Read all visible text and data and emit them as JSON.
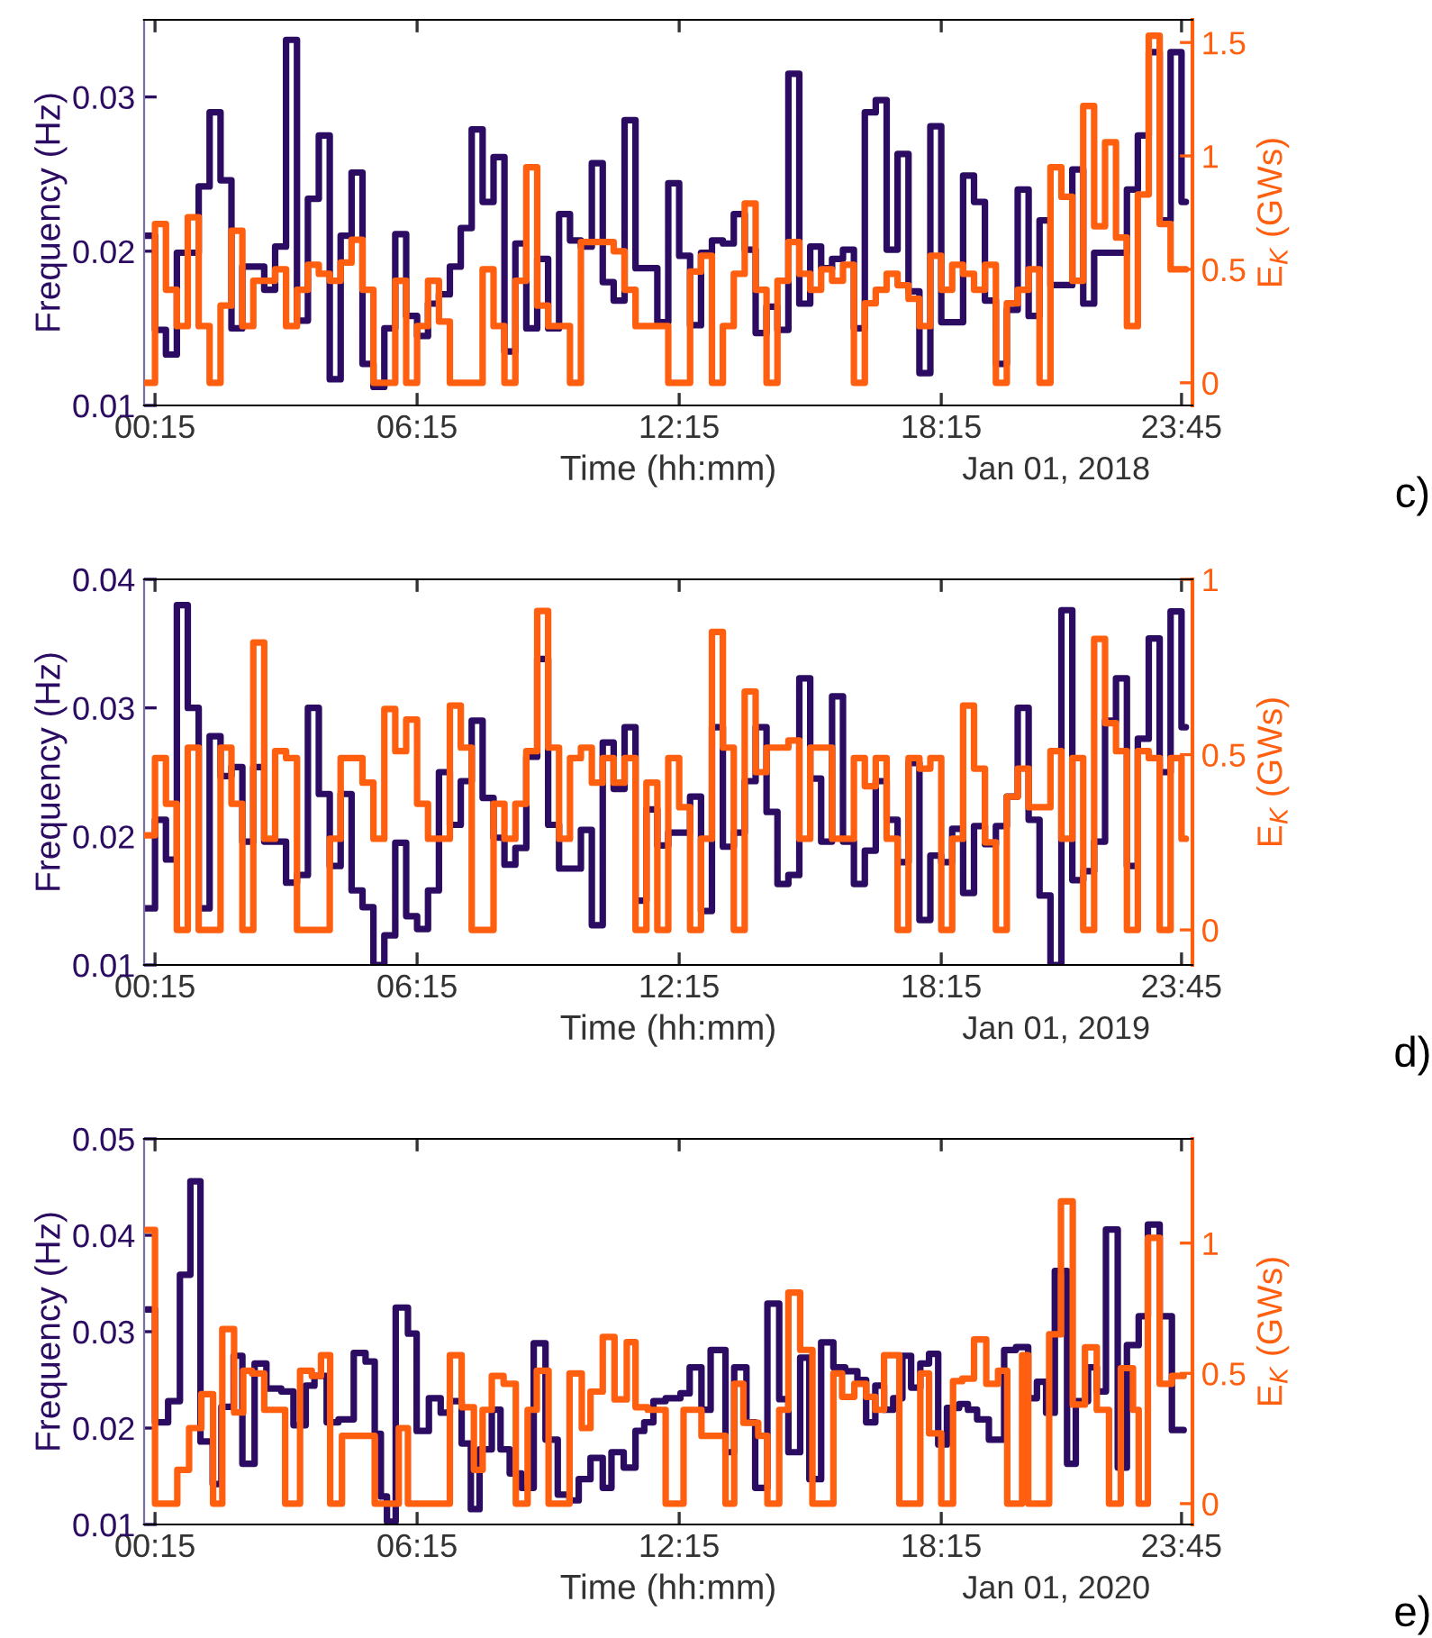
{
  "chart_data": [
    {
      "type": "step",
      "xlabel": "Time (hh:mm)",
      "ylabel": "Frequency (Hz)",
      "y2label": "E$_{K}$ (GWs)",
      "annotations": [
        "Jan 01, 2018",
        "c)"
      ],
      "xlim": [
        0,
        24
      ],
      "xticks": [
        {
          "value": 0.25,
          "label": "00:15"
        },
        {
          "value": 6.25,
          "label": "06:15"
        },
        {
          "value": 12.25,
          "label": "12:15"
        },
        {
          "value": 18.25,
          "label": "18:15"
        },
        {
          "value": 23.75,
          "label": "23:45"
        }
      ],
      "ylim": [
        0.01,
        0.035
      ],
      "yticks": [
        0.01,
        0.02,
        0.03
      ],
      "y2lim": [
        -0.1,
        1.6
      ],
      "y2ticks": [
        0,
        0.5,
        1,
        1.5
      ],
      "series": [
        {
          "color": "#2b0c62",
          "x": [
            0,
            0.25,
            0.5,
            0.75,
            1.25,
            1.5,
            1.75,
            2.0,
            2.25,
            2.75,
            3.0,
            3.25,
            3.5,
            3.75,
            4.0,
            4.25,
            4.5,
            4.75,
            5.0,
            5.25,
            5.5,
            5.75,
            6.0,
            6.25,
            6.5,
            6.75,
            7.0,
            7.25,
            7.5,
            7.75,
            8.0,
            8.25,
            8.5,
            8.75,
            9.0,
            9.25,
            9.5,
            9.75,
            10.0,
            10.25,
            10.5,
            10.75,
            11.0,
            11.25,
            11.75,
            12.0,
            12.25,
            12.5,
            12.75,
            13.0,
            13.25,
            13.5,
            13.75,
            14.0,
            14.25,
            14.5,
            14.75,
            15.0,
            15.25,
            15.5,
            15.75,
            16.0,
            16.25,
            16.5,
            16.75,
            17.0,
            17.25,
            17.5,
            17.75,
            18.0,
            18.25,
            18.75,
            19.0,
            19.25,
            19.5,
            19.75,
            20.0,
            20.25,
            20.5,
            20.75,
            21.25,
            21.5,
            21.75,
            22.5,
            22.75,
            23.0,
            23.25,
            23.5,
            23.75,
            23.85
          ],
          "values": [
            0.021,
            0.0149,
            0.0133,
            0.0199,
            0.0242,
            0.029,
            0.0246,
            0.015,
            0.019,
            0.0175,
            0.0203,
            0.0337,
            0.0155,
            0.0234,
            0.0275,
            0.0117,
            0.021,
            0.0251,
            0.0127,
            0.0112,
            0.015,
            0.0211,
            0.0158,
            0.0145,
            0.0166,
            0.0172,
            0.019,
            0.0215,
            0.0279,
            0.0232,
            0.0261,
            0.0135,
            0.0205,
            0.015,
            0.0195,
            0.015,
            0.0224,
            0.0207,
            0.0203,
            0.0257,
            0.018,
            0.0168,
            0.0285,
            0.0189,
            0.0154,
            0.0244,
            0.0197,
            0.0152,
            0.0199,
            0.0207,
            0.0205,
            0.0224,
            0.0201,
            0.0147,
            0.0164,
            0.0149,
            0.0315,
            0.0166,
            0.0203,
            0.0189,
            0.0195,
            0.0201,
            0.015,
            0.029,
            0.0298,
            0.0201,
            0.0263,
            0.0174,
            0.0121,
            0.0281,
            0.0154,
            0.0249,
            0.0232,
            0.0168,
            0.0127,
            0.0162,
            0.024,
            0.0158,
            0.022,
            0.0178,
            0.0253,
            0.0166,
            0.0199,
            0.024,
            0.0275,
            0.0329,
            0.022,
            0.0329,
            0.0232,
            0.0232
          ]
        },
        {
          "color": "#ff5f0f",
          "axis": "y2",
          "x": [
            0,
            0.25,
            0.5,
            0.75,
            1.0,
            1.25,
            1.5,
            1.75,
            2.0,
            2.25,
            2.5,
            3.0,
            3.25,
            3.5,
            3.75,
            4.0,
            4.25,
            4.5,
            4.75,
            5.0,
            5.25,
            5.75,
            6.0,
            6.25,
            6.5,
            6.75,
            7.0,
            7.75,
            8.0,
            8.25,
            8.5,
            8.75,
            9.0,
            9.25,
            9.75,
            10.0,
            10.75,
            11.0,
            11.25,
            12.0,
            12.5,
            12.75,
            13.0,
            13.25,
            13.5,
            13.75,
            14.0,
            14.25,
            14.5,
            14.75,
            15.0,
            15.25,
            15.5,
            15.75,
            16.0,
            16.25,
            16.5,
            16.75,
            17.0,
            17.25,
            17.5,
            17.75,
            18.0,
            18.25,
            18.5,
            18.75,
            19.0,
            19.25,
            19.5,
            19.75,
            20.0,
            20.25,
            20.5,
            20.75,
            21.0,
            21.25,
            21.5,
            21.75,
            22.0,
            22.25,
            22.5,
            22.75,
            23.0,
            23.25,
            23.5,
            23.85
          ],
          "values": [
            0,
            0.7,
            0.41,
            0.25,
            0.73,
            0.25,
            0,
            0.34,
            0.67,
            0.25,
            0.45,
            0.5,
            0.25,
            0.41,
            0.52,
            0.48,
            0.45,
            0.53,
            0.63,
            0.41,
            0,
            0.45,
            0,
            0.25,
            0.45,
            0.27,
            0,
            0.5,
            0.25,
            0,
            0.45,
            0.95,
            0.34,
            0.25,
            0,
            0.62,
            0.58,
            0.41,
            0.25,
            0,
            0.49,
            0.56,
            0,
            0.25,
            0.48,
            0.79,
            0.41,
            0,
            0.45,
            0.62,
            0.48,
            0.41,
            0.5,
            0.45,
            0.52,
            0,
            0.35,
            0.41,
            0.48,
            0.43,
            0.37,
            0.25,
            0.56,
            0.41,
            0.52,
            0.48,
            0.41,
            0.52,
            0,
            0.35,
            0.41,
            0.5,
            0,
            0.95,
            0.82,
            0.45,
            1.22,
            0.69,
            1.06,
            0.64,
            0.25,
            0.83,
            1.53,
            0.7,
            0.5,
            0.5
          ]
        }
      ]
    },
    {
      "type": "step",
      "xlabel": "Time (hh:mm)",
      "ylabel": "Frequency (Hz)",
      "y2label": "E$_{K}$ (GWs)",
      "annotations": [
        "Jan 01, 2019",
        "d)"
      ],
      "xlim": [
        0,
        24
      ],
      "xticks": [
        {
          "value": 0.25,
          "label": "00:15"
        },
        {
          "value": 6.25,
          "label": "06:15"
        },
        {
          "value": 12.25,
          "label": "12:15"
        },
        {
          "value": 18.25,
          "label": "18:15"
        },
        {
          "value": 23.75,
          "label": "23:45"
        }
      ],
      "ylim": [
        0.01,
        0.04
      ],
      "yticks": [
        0.01,
        0.02,
        0.03,
        0.04
      ],
      "y2lim": [
        -0.1,
        1
      ],
      "y2ticks": [
        0,
        0.5,
        1
      ],
      "series": [
        {
          "color": "#2b0c62",
          "x": [
            0,
            0.25,
            0.5,
            0.75,
            1.0,
            1.25,
            1.5,
            1.75,
            2.0,
            2.25,
            2.5,
            2.75,
            3.25,
            3.5,
            3.75,
            4.0,
            4.25,
            4.5,
            4.75,
            5.0,
            5.25,
            5.5,
            5.75,
            6.0,
            6.25,
            6.5,
            6.75,
            7.0,
            7.25,
            7.5,
            7.75,
            8.0,
            8.25,
            8.5,
            8.75,
            9.0,
            9.25,
            9.5,
            10.0,
            10.25,
            10.5,
            10.75,
            11.0,
            11.25,
            11.5,
            11.75,
            12.0,
            12.5,
            12.75,
            13.0,
            13.25,
            13.5,
            13.75,
            14.0,
            14.25,
            14.5,
            14.75,
            15.0,
            15.25,
            15.5,
            15.75,
            16.0,
            16.25,
            16.5,
            16.75,
            17.0,
            17.25,
            17.5,
            17.75,
            18.0,
            18.25,
            18.5,
            18.75,
            19.0,
            19.25,
            19.5,
            19.75,
            20.0,
            20.25,
            20.5,
            20.75,
            21.0,
            21.25,
            21.5,
            21.75,
            22.0,
            22.25,
            22.5,
            22.75,
            23.0,
            23.25,
            23.5,
            23.75,
            23.85
          ],
          "values": [
            0.0144,
            0.0213,
            0.0182,
            0.038,
            0.03,
            0.0144,
            0.0278,
            0.0247,
            0.0254,
            0.0196,
            0.0254,
            0.0196,
            0.0164,
            0.017,
            0.03,
            0.0233,
            0.0177,
            0.0233,
            0.0158,
            0.0145,
            0.01,
            0.0123,
            0.0195,
            0.0138,
            0.0128,
            0.0158,
            0.025,
            0.0209,
            0.0243,
            0.029,
            0.023,
            0.0199,
            0.0178,
            0.0191,
            0.0262,
            0.0338,
            0.0209,
            0.0175,
            0.0205,
            0.0131,
            0.0273,
            0.0237,
            0.0285,
            0.015,
            0.0221,
            0.0193,
            0.0203,
            0.0231,
            0.0142,
            0.0285,
            0.0192,
            0.0203,
            0.0243,
            0.0285,
            0.0219,
            0.0163,
            0.017,
            0.0323,
            0.0245,
            0.0196,
            0.0309,
            0.0196,
            0.0163,
            0.0189,
            0.0243,
            0.0213,
            0.018,
            0.0257,
            0.0135,
            0.0185,
            0.018,
            0.0206,
            0.0156,
            0.0208,
            0.0194,
            0.0208,
            0.0231,
            0.03,
            0.0213,
            0.0154,
            0.01,
            0.0376,
            0.0166,
            0.0173,
            0.0196,
            0.029,
            0.0323,
            0.0177,
            0.0276,
            0.0354,
            0.025,
            0.0375,
            0.0285,
            0.0285
          ]
        },
        {
          "color": "#ff5f0f",
          "axis": "y2",
          "x": [
            0,
            0.25,
            0.5,
            0.75,
            1.0,
            1.25,
            1.75,
            2.0,
            2.25,
            2.5,
            2.75,
            3.0,
            3.25,
            3.5,
            4.25,
            4.5,
            5.0,
            5.25,
            5.5,
            5.75,
            6.0,
            6.25,
            6.5,
            7.0,
            7.25,
            7.5,
            8.0,
            8.25,
            8.5,
            8.75,
            9.0,
            9.25,
            9.5,
            9.75,
            10.0,
            10.25,
            10.5,
            10.75,
            11.0,
            11.25,
            11.5,
            11.75,
            12.0,
            12.25,
            12.5,
            12.75,
            13.0,
            13.25,
            13.5,
            13.75,
            14.0,
            14.25,
            14.75,
            15.0,
            15.25,
            15.75,
            16.25,
            16.5,
            16.75,
            17.0,
            17.25,
            17.5,
            17.75,
            18.0,
            18.25,
            18.5,
            18.75,
            19.0,
            19.25,
            19.5,
            19.75,
            20.0,
            20.25,
            20.75,
            21.0,
            21.25,
            21.5,
            21.75,
            22.0,
            22.25,
            22.5,
            22.75,
            23.0,
            23.25,
            23.5,
            23.75,
            23.85
          ],
          "values": [
            0.27,
            0.49,
            0.36,
            0,
            0.52,
            0,
            0.52,
            0.36,
            0,
            0.82,
            0.26,
            0.51,
            0.49,
            0,
            0.26,
            0.49,
            0.42,
            0.26,
            0.63,
            0.51,
            0.6,
            0.36,
            0.26,
            0.64,
            0.52,
            0,
            0.36,
            0.26,
            0.36,
            0.51,
            0.91,
            0.52,
            0.26,
            0.49,
            0.52,
            0.42,
            0.49,
            0.42,
            0.49,
            0,
            0.42,
            0,
            0.49,
            0.35,
            0,
            0.26,
            0.85,
            0.52,
            0,
            0.68,
            0.45,
            0.52,
            0.54,
            0.26,
            0.52,
            0.26,
            0.49,
            0.41,
            0.49,
            0.26,
            0,
            0.49,
            0.46,
            0.49,
            0,
            0.26,
            0.64,
            0.46,
            0.25,
            0,
            0.38,
            0.46,
            0.35,
            0.51,
            0.26,
            0.49,
            0,
            0.83,
            0.59,
            0.51,
            0,
            0.51,
            0.49,
            0,
            0.49,
            0.26,
            0.26
          ]
        }
      ]
    },
    {
      "type": "step",
      "xlabel": "Time (hh:mm)",
      "ylabel": "Frequency (Hz)",
      "y2label": "E$_{K}$ (GWs)",
      "annotations": [
        "Jan 01, 2020",
        "e)"
      ],
      "xlim": [
        0,
        24
      ],
      "xticks": [
        {
          "value": 0.25,
          "label": "00:15"
        },
        {
          "value": 6.25,
          "label": "06:15"
        },
        {
          "value": 12.25,
          "label": "12:15"
        },
        {
          "value": 18.25,
          "label": "18:15"
        },
        {
          "value": 23.75,
          "label": "23:45"
        }
      ],
      "ylim": [
        0.01,
        0.05
      ],
      "yticks": [
        0.01,
        0.02,
        0.03,
        0.04,
        0.05
      ],
      "y2lim": [
        -0.08,
        1.4
      ],
      "y2ticks": [
        0,
        0.5,
        1
      ],
      "series": [
        {
          "color": "#2b0c62",
          "x": [
            0.05,
            0.25,
            0.55,
            0.82,
            1.06,
            1.29,
            1.57,
            1.77,
            2.05,
            2.25,
            2.53,
            2.8,
            3.14,
            3.42,
            3.7,
            3.9,
            4.18,
            4.45,
            4.8,
            5.07,
            5.28,
            5.42,
            5.56,
            5.76,
            6.04,
            6.24,
            6.52,
            6.79,
            7.0,
            7.27,
            7.48,
            7.68,
            7.96,
            8.16,
            8.37,
            8.64,
            8.92,
            9.19,
            9.47,
            9.74,
            9.95,
            10.22,
            10.5,
            10.7,
            10.98,
            11.25,
            11.45,
            11.66,
            11.94,
            12.28,
            12.49,
            12.76,
            12.97,
            13.31,
            13.51,
            13.79,
            13.99,
            14.27,
            14.54,
            14.75,
            15.02,
            15.23,
            15.5,
            15.78,
            16.05,
            16.33,
            16.53,
            16.74,
            16.94,
            17.15,
            17.36,
            17.56,
            17.77,
            17.97,
            18.18,
            18.38,
            18.66,
            18.86,
            19.07,
            19.34,
            19.69,
            19.96,
            20.24,
            20.44,
            20.65,
            20.85,
            21.13,
            21.33,
            21.61,
            21.81,
            22.02,
            22.29,
            22.5,
            22.77,
            22.98,
            23.25,
            23.53,
            23.8
          ],
          "values": [
            0.0323,
            0.0206,
            0.0228,
            0.0359,
            0.0456,
            0.0186,
            0.0142,
            0.0222,
            0.0275,
            0.0163,
            0.0267,
            0.0241,
            0.0238,
            0.0203,
            0.0244,
            0.0254,
            0.0206,
            0.0209,
            0.0278,
            0.0269,
            0.0194,
            0.0129,
            0.0103,
            0.0325,
            0.0298,
            0.0197,
            0.0231,
            0.0216,
            0.0228,
            0.0184,
            0.0116,
            0.0178,
            0.0219,
            0.0178,
            0.0153,
            0.0138,
            0.0288,
            0.0188,
            0.0131,
            0.0125,
            0.0147,
            0.0169,
            0.0138,
            0.0175,
            0.0159,
            0.0197,
            0.0206,
            0.0228,
            0.0231,
            0.0236,
            0.0263,
            0.0219,
            0.0281,
            0.0175,
            0.0263,
            0.0206,
            0.0138,
            0.0329,
            0.023,
            0.0175,
            0.0273,
            0.0147,
            0.0289,
            0.0263,
            0.0259,
            0.025,
            0.0206,
            0.0244,
            0.0219,
            0.0231,
            0.0275,
            0.0242,
            0.0267,
            0.0277,
            0.0183,
            0.0221,
            0.0225,
            0.0219,
            0.0209,
            0.0188,
            0.0281,
            0.0284,
            0.0231,
            0.0248,
            0.0216,
            0.0363,
            0.0163,
            0.0228,
            0.0263,
            0.0238,
            0.0406,
            0.0159,
            0.0286,
            0.0316,
            0.0411,
            0.0316,
            0.0198,
            0.0198
          ]
        },
        {
          "color": "#ff5f0f",
          "axis": "y2",
          "x": [
            0.05,
            0.25,
            0.76,
            1.03,
            1.31,
            1.58,
            1.79,
            2.06,
            2.27,
            2.47,
            2.75,
            3.23,
            3.57,
            3.84,
            4.05,
            4.26,
            4.53,
            5.28,
            5.83,
            6.04,
            7.0,
            7.27,
            7.55,
            7.75,
            7.96,
            8.23,
            8.51,
            8.78,
            8.99,
            9.26,
            9.74,
            10.02,
            10.22,
            10.5,
            10.77,
            11.05,
            11.25,
            11.53,
            11.94,
            12.35,
            12.76,
            13.31,
            13.51,
            13.72,
            14.06,
            14.27,
            14.54,
            14.75,
            15.02,
            15.3,
            15.78,
            15.98,
            16.26,
            16.53,
            16.74,
            16.94,
            17.29,
            17.77,
            17.97,
            18.25,
            18.52,
            18.73,
            19.0,
            19.28,
            19.55,
            19.76,
            20.1,
            20.24,
            20.72,
            20.99,
            21.26,
            21.54,
            21.81,
            22.09,
            22.36,
            22.64,
            22.77,
            22.98,
            23.25,
            23.53,
            23.8
          ],
          "values": [
            1.05,
            0,
            0.13,
            0.29,
            0.42,
            0,
            0.67,
            0.35,
            0.51,
            0.5,
            0.36,
            0,
            0.51,
            0.49,
            0.57,
            0,
            0.26,
            0,
            0.29,
            0,
            0.57,
            0.37,
            0.13,
            0.36,
            0.49,
            0.46,
            0,
            0.36,
            0.51,
            0,
            0.5,
            0.29,
            0.43,
            0.64,
            0.4,
            0.62,
            0.37,
            0.36,
            0,
            0.36,
            0.26,
            0,
            0.46,
            0.31,
            0.26,
            0,
            0.36,
            0.81,
            0.59,
            0,
            0.5,
            0.41,
            0.46,
            0.41,
            0.36,
            0.57,
            0,
            0.5,
            0.27,
            0,
            0.47,
            0.48,
            0.63,
            0.46,
            0.51,
            0,
            0.57,
            0,
            0.65,
            1.16,
            0.38,
            0.6,
            0.36,
            0,
            0.52,
            0.36,
            0,
            1.02,
            0.46,
            0.49,
            0.49
          ]
        }
      ]
    }
  ]
}
